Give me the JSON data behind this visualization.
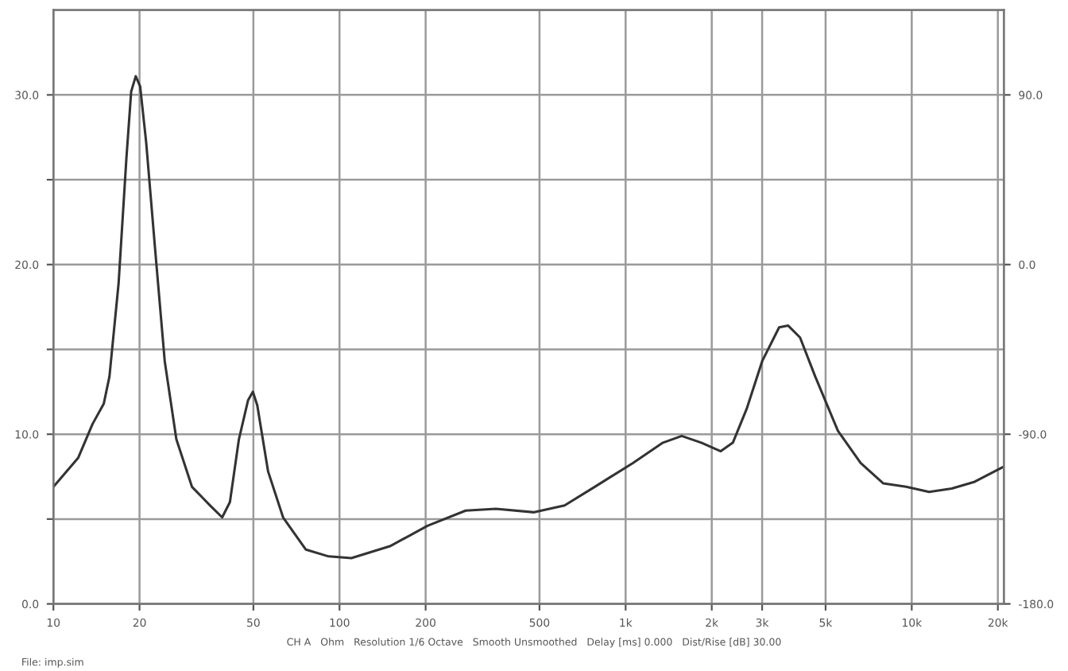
{
  "chart_data": {
    "type": "line",
    "log": "x",
    "grid": true,
    "marker": "none",
    "line_style": "solid",
    "xlim": [
      10,
      21000
    ],
    "ylim": [
      0,
      35
    ],
    "y2lim": [
      -180,
      135
    ],
    "xticks": [
      10,
      20,
      50,
      100,
      200,
      500,
      {
        "value": 1000,
        "label": "1k"
      },
      {
        "value": 2000,
        "label": "2k"
      },
      {
        "value": 3000,
        "label": "3k"
      },
      {
        "value": 5000,
        "label": "5k"
      },
      {
        "value": 10000,
        "label": "10k"
      },
      {
        "value": 20000,
        "label": "20k"
      }
    ],
    "yticks": [
      {
        "value": 0,
        "label": "0.0"
      },
      {
        "value": 5,
        "label": null
      },
      {
        "value": 10,
        "label": "10.0"
      },
      {
        "value": 15,
        "label": null
      },
      {
        "value": 20,
        "label": "20.0"
      },
      {
        "value": 25,
        "label": null
      },
      {
        "value": 30,
        "label": "30.0"
      }
    ],
    "y2ticks": [
      {
        "value": -180,
        "label": "-180.0"
      },
      {
        "value": -90,
        "label": "-90.0"
      },
      {
        "value": 0,
        "label": "0.0"
      },
      {
        "value": 90,
        "label": "90.0"
      }
    ],
    "annotations": [
      "CH A   Ohm   Resolution 1/6 Octave   Smooth Unsmoothed   Delay [ms] 0.000   Dist/Rise [dB] 30.00",
      "File: imp.sim"
    ],
    "series": [
      {
        "color": "#333333",
        "x": [
          10,
          12.2,
          13.7,
          15,
          15.7,
          16.9,
          18,
          18.7,
          19.4,
          20.1,
          21.1,
          22.7,
          24.5,
          26.9,
          30.5,
          35.3,
          38.9,
          41.4,
          44.5,
          47.9,
          49.8,
          51.6,
          56.3,
          63.5,
          76.3,
          91.6,
          110,
          150,
          203,
          276,
          352,
          479,
          612,
          780,
          1060,
          1350,
          1570,
          1840,
          2150,
          2370,
          2650,
          3000,
          3440,
          3700,
          4070,
          4600,
          5520,
          6630,
          7960,
          9560,
          11500,
          13800,
          16600,
          21000
        ],
        "values": [
          6.9,
          8.6,
          10.6,
          11.8,
          13.4,
          18.9,
          26.3,
          30.2,
          31.1,
          30.5,
          27.2,
          20.8,
          14.3,
          9.7,
          6.9,
          5.8,
          5.1,
          6.0,
          9.7,
          12.0,
          12.5,
          11.7,
          7.8,
          5.1,
          3.2,
          2.8,
          2.7,
          3.4,
          4.6,
          5.5,
          5.6,
          5.4,
          5.8,
          6.9,
          8.3,
          9.5,
          9.9,
          9.5,
          9.0,
          9.5,
          11.5,
          14.3,
          16.3,
          16.4,
          15.7,
          13.4,
          10.2,
          8.3,
          7.1,
          6.9,
          6.6,
          6.8,
          7.2,
          8.1
        ]
      }
    ]
  }
}
